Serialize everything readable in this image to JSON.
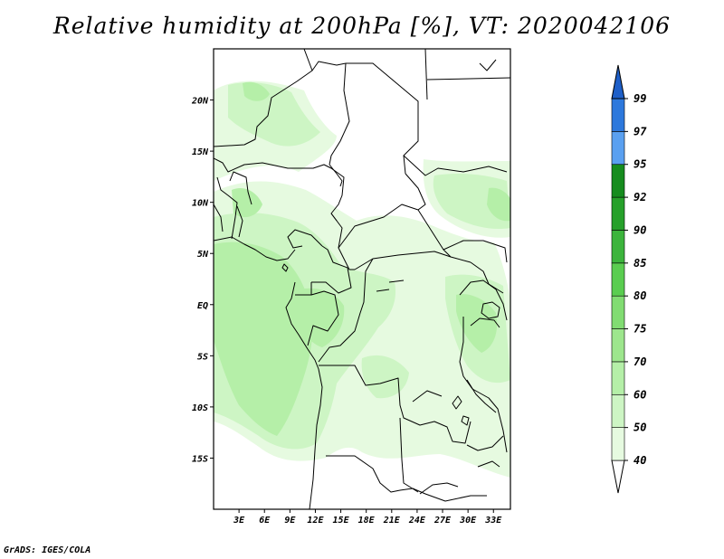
{
  "title": "Relative humidity at 200hPa [%], VT: 2020042106",
  "credit": "GrADS: IGES/COLA",
  "map": {
    "lon_min": 0,
    "lon_max": 35,
    "lat_min": -20,
    "lat_max": 25,
    "lat_ticks": [
      {
        "lat": 20,
        "label": "20N"
      },
      {
        "lat": 15,
        "label": "15N"
      },
      {
        "lat": 10,
        "label": "10N"
      },
      {
        "lat": 5,
        "label": "5N"
      },
      {
        "lat": 0,
        "label": "EQ"
      },
      {
        "lat": -5,
        "label": "5S"
      },
      {
        "lat": -10,
        "label": "10S"
      },
      {
        "lat": -15,
        "label": "15S"
      }
    ],
    "lon_ticks": [
      {
        "lon": 3,
        "label": "3E"
      },
      {
        "lon": 6,
        "label": "6E"
      },
      {
        "lon": 9,
        "label": "9E"
      },
      {
        "lon": 12,
        "label": "12E"
      },
      {
        "lon": 15,
        "label": "15E"
      },
      {
        "lon": 18,
        "label": "18E"
      },
      {
        "lon": 21,
        "label": "21E"
      },
      {
        "lon": 24,
        "label": "24E"
      },
      {
        "lon": 27,
        "label": "27E"
      },
      {
        "lon": 30,
        "label": "30E"
      },
      {
        "lon": 33,
        "label": "33E"
      }
    ]
  },
  "colorbar": {
    "levels": [
      {
        "label": "40",
        "color": "#ffffff"
      },
      {
        "label": "50",
        "color": "#e6fae0"
      },
      {
        "label": "60",
        "color": "#cdf5c4"
      },
      {
        "label": "70",
        "color": "#b5efa8"
      },
      {
        "label": "75",
        "color": "#9de68d"
      },
      {
        "label": "80",
        "color": "#81dc72"
      },
      {
        "label": "85",
        "color": "#5acd50"
      },
      {
        "label": "90",
        "color": "#3cb43c"
      },
      {
        "label": "92",
        "color": "#26a02a"
      },
      {
        "label": "95",
        "color": "#168c1e"
      },
      {
        "label": "97",
        "color": "#5aa0f0"
      },
      {
        "label": "99",
        "color": "#2d78dc"
      }
    ],
    "top_color": "#1e5fc8"
  },
  "humidity_fields": [
    {
      "level": "50",
      "color": "#e6fae0"
    },
    {
      "level": "60",
      "color": "#cdf5c4"
    },
    {
      "level": "70",
      "color": "#b5efa8"
    }
  ]
}
